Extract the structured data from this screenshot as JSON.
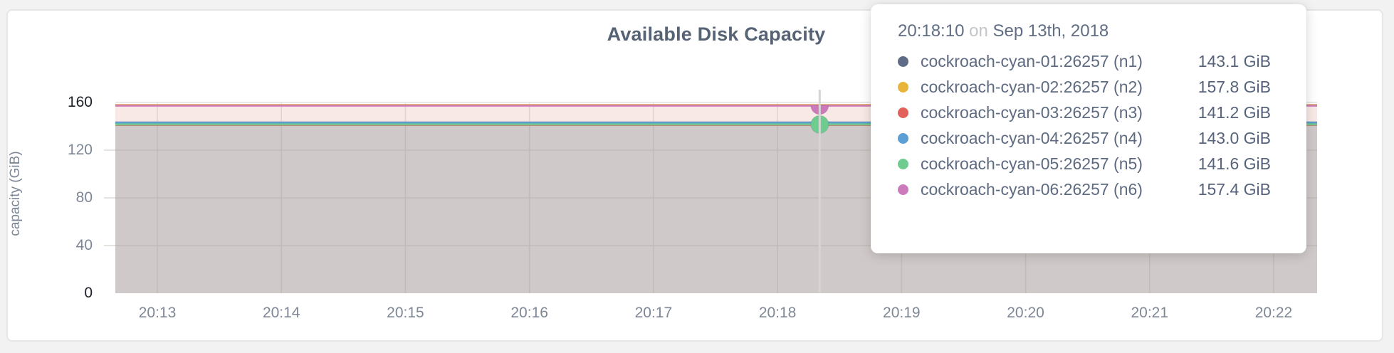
{
  "chart_data": {
    "type": "area",
    "title": "Available Disk Capacity",
    "xlabel": "",
    "ylabel": "capacity (GiB)",
    "ylim": [
      0,
      160
    ],
    "grid": true,
    "y_ticks": [
      0,
      40,
      80,
      120,
      160
    ],
    "x_ticks": [
      "20:13",
      "20:14",
      "20:15",
      "20:16",
      "20:17",
      "20:18",
      "20:19",
      "20:20",
      "20:21",
      "20:22"
    ],
    "legend_position": "hover-tooltip",
    "series": [
      {
        "name": "cockroach-cyan-01:26257 (n1)",
        "color": "#5f6c87",
        "value_gib": 143.1,
        "value_label": "143.1 GiB",
        "marker": false
      },
      {
        "name": "cockroach-cyan-02:26257 (n2)",
        "color": "#e8b43a",
        "value_gib": 157.8,
        "value_label": "157.8 GiB",
        "marker": false
      },
      {
        "name": "cockroach-cyan-03:26257 (n3)",
        "color": "#e2615a",
        "value_gib": 141.2,
        "value_label": "141.2 GiB",
        "marker": false
      },
      {
        "name": "cockroach-cyan-04:26257 (n4)",
        "color": "#5b9fd4",
        "value_gib": 143.0,
        "value_label": "143.0 GiB",
        "marker": false
      },
      {
        "name": "cockroach-cyan-05:26257 (n5)",
        "color": "#6fcc90",
        "value_gib": 141.6,
        "value_label": "141.6 GiB",
        "marker": "circle"
      },
      {
        "name": "cockroach-cyan-06:26257 (n6)",
        "color": "#cc7abc",
        "value_gib": 157.4,
        "value_label": "157.4 GiB",
        "marker": "half-disc"
      }
    ],
    "hover": {
      "time": "20:18:10",
      "conjunction": "on",
      "date": "Sep 13th, 2018"
    },
    "colors": {
      "title_text": "#566374",
      "axis_text": "#7e8796",
      "axis_minmax_text": "#1d2129",
      "grid": "#e4e3e0",
      "crosshair": "#d6d5d2",
      "tooltip_text": "#5e6a80",
      "tooltip_muted": "#c3c6c9"
    }
  }
}
